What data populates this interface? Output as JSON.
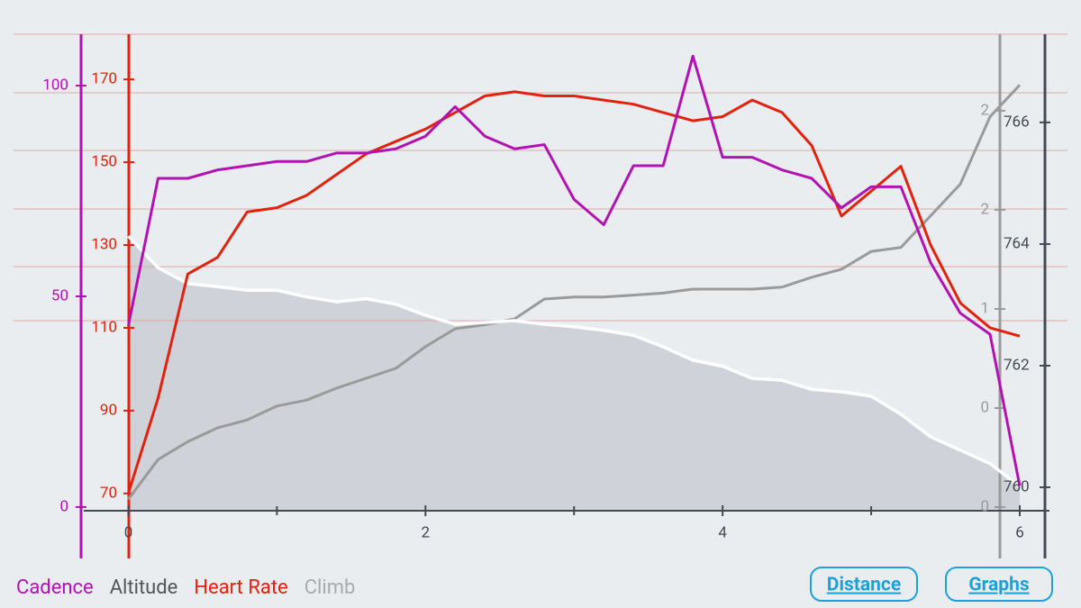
{
  "chart_data": {
    "type": "line",
    "x": [
      0,
      0.2,
      0.4,
      0.6,
      0.8,
      1.0,
      1.2,
      1.4,
      1.6,
      1.8,
      2.0,
      2.2,
      2.4,
      2.6,
      2.8,
      3.0,
      3.2,
      3.4,
      3.6,
      3.8,
      4.0,
      4.2,
      4.4,
      4.6,
      4.8,
      5.0,
      5.2,
      5.4,
      5.6,
      5.8,
      6.0
    ],
    "xlim": [
      -0.3,
      6.2
    ],
    "xticks": [
      0,
      2,
      4,
      6
    ],
    "xminorticks": [
      1,
      3,
      5
    ],
    "ylim": [
      -12.2,
      112.2
    ],
    "yticks": [
      0,
      50,
      100
    ],
    "y2lim": [
      54.3,
      180.9
    ],
    "y2ticks": [
      70,
      90,
      110,
      130,
      150,
      170
    ],
    "y3lim": [
      758.83,
      767.45
    ],
    "y3ticks": [
      760,
      762,
      764,
      766
    ],
    "y4lim": [
      -0.259,
      2.386
    ],
    "y4ticks": [
      0,
      {
        "value": 0.5,
        "label": "0"
      },
      1,
      {
        "value": 1.5,
        "label": "2"
      },
      2
    ],
    "series": [
      {
        "name": "Cadence",
        "color": "#b312b3",
        "axis": "y",
        "values": [
          43,
          78,
          78,
          80,
          81,
          82,
          82,
          84,
          84,
          85,
          88,
          95,
          88,
          85,
          86,
          73,
          67,
          81,
          81,
          107,
          83,
          83,
          80,
          78,
          71,
          76,
          76,
          58,
          46,
          41,
          5
        ]
      },
      {
        "name": "Altitude",
        "color": "#ffffff",
        "fill": "#cfd2d8",
        "legend_color": "#555555",
        "axis": "y3",
        "values": [
          764.13,
          763.61,
          763.35,
          763.3,
          763.24,
          763.24,
          763.13,
          763.05,
          763.1,
          763.01,
          762.83,
          762.68,
          762.71,
          762.74,
          762.68,
          762.64,
          762.58,
          762.5,
          762.31,
          762.09,
          761.99,
          761.79,
          761.76,
          761.61,
          761.57,
          761.5,
          761.2,
          760.83,
          760.61,
          760.39,
          760.01
        ]
      },
      {
        "name": "Heart Rate",
        "color": "#e0220f",
        "axis": "y2",
        "values": [
          70,
          93,
          123,
          127,
          138,
          139,
          142,
          147,
          152,
          155,
          158,
          162,
          166,
          167,
          166,
          166,
          165,
          164,
          162,
          160,
          161,
          165,
          162,
          154,
          137,
          143,
          149,
          130,
          116,
          110,
          108
        ]
      },
      {
        "name": "Climb",
        "color": "#9a9a9a",
        "legend_color": "#aaaaaa",
        "axis": "y4",
        "values": [
          0.04,
          0.24,
          0.33,
          0.4,
          0.44,
          0.51,
          0.54,
          0.6,
          0.65,
          0.7,
          0.81,
          0.9,
          0.92,
          0.95,
          1.05,
          1.06,
          1.06,
          1.07,
          1.08,
          1.1,
          1.1,
          1.1,
          1.11,
          1.16,
          1.2,
          1.29,
          1.31,
          1.47,
          1.63,
          1.97,
          2.13
        ]
      }
    ],
    "buttons": [
      "Distance",
      "Graphs"
    ]
  }
}
